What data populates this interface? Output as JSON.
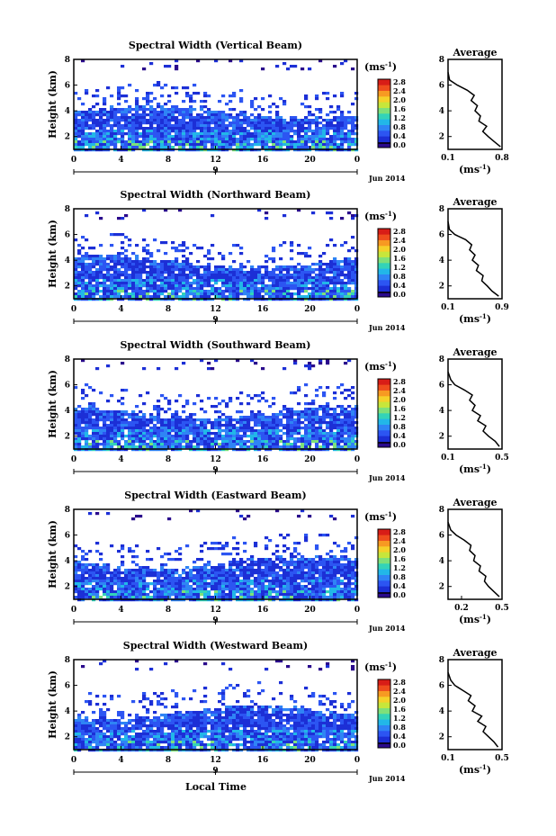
{
  "figure": {
    "xlabel_bottom": "Local Time",
    "colormap": [
      "#2a0a8c",
      "#1c2fd6",
      "#2c55f2",
      "#2f84f5",
      "#22b7e8",
      "#33d3b8",
      "#7ee07a",
      "#c7e63b",
      "#f5d12a",
      "#f79a22",
      "#ef4d1d",
      "#d81d17"
    ],
    "colorbar_marker": "#000000",
    "data_bg_color": "#ffffff"
  },
  "chart_data": [
    {
      "type": "heatmap",
      "title": "Spectral Width (Vertical Beam)",
      "ylabel": "Height (km)",
      "unit_label": "(ms-1)",
      "x_ticks": [
        "0",
        "4",
        "8",
        "12",
        "16",
        "20",
        "0"
      ],
      "x_range": [
        0,
        24
      ],
      "y_ticks": [
        "2",
        "4",
        "6",
        "8"
      ],
      "y_range": [
        1,
        8
      ],
      "date_tick": "9",
      "date_label": "Jun 2014",
      "colorbar_ticks": [
        "2.8",
        "2.4",
        "2.0",
        "1.6",
        "1.2",
        "0.8",
        "0.4",
        "0.0"
      ],
      "colorbar_range": [
        0.0,
        2.8
      ],
      "average_profile": {
        "title": "Average",
        "xlabel": "(ms-1)",
        "x_ticks": [
          "0.1",
          "0.8"
        ],
        "x_range": [
          0.1,
          0.8
        ],
        "y_ticks": [
          "2",
          "4",
          "6",
          "8"
        ],
        "y_range": [
          1,
          8
        ],
        "height_km": [
          1.2,
          1.6,
          2.0,
          2.4,
          2.8,
          3.2,
          3.6,
          4.0,
          4.4,
          4.8,
          5.2,
          5.6,
          6.0,
          6.4,
          7.0
        ],
        "width_ms": [
          0.78,
          0.7,
          0.62,
          0.55,
          0.6,
          0.5,
          0.52,
          0.45,
          0.48,
          0.4,
          0.44,
          0.35,
          0.22,
          0.12,
          0.1
        ]
      }
    },
    {
      "type": "heatmap",
      "title": "Spectral Width (Northward Beam)",
      "ylabel": "Height (km)",
      "unit_label": "(ms-1)",
      "x_ticks": [
        "0",
        "4",
        "8",
        "12",
        "16",
        "20",
        "0"
      ],
      "x_range": [
        0,
        24
      ],
      "y_ticks": [
        "2",
        "4",
        "6",
        "8"
      ],
      "y_range": [
        1,
        8
      ],
      "date_tick": "9",
      "date_label": "Jun 2014",
      "colorbar_ticks": [
        "2.8",
        "2.4",
        "2.0",
        "1.6",
        "1.2",
        "0.8",
        "0.4",
        "0.0"
      ],
      "colorbar_range": [
        0.0,
        2.8
      ],
      "average_profile": {
        "title": "Average",
        "xlabel": "(ms-1)",
        "x_ticks": [
          "0.1",
          "0.9"
        ],
        "x_range": [
          0.1,
          0.9
        ],
        "y_ticks": [
          "2",
          "4",
          "6",
          "8"
        ],
        "y_range": [
          1,
          8
        ],
        "height_km": [
          1.2,
          1.6,
          2.0,
          2.4,
          2.8,
          3.2,
          3.6,
          4.0,
          4.4,
          4.8,
          5.2,
          5.6,
          6.0,
          6.4,
          7.0
        ],
        "width_ms": [
          0.85,
          0.75,
          0.68,
          0.6,
          0.62,
          0.52,
          0.55,
          0.46,
          0.5,
          0.42,
          0.45,
          0.36,
          0.2,
          0.12,
          0.1
        ]
      }
    },
    {
      "type": "heatmap",
      "title": "Spectral Width (Southward Beam)",
      "ylabel": "Height (km)",
      "unit_label": "(ms-1)",
      "x_ticks": [
        "0",
        "4",
        "8",
        "12",
        "16",
        "20",
        "0"
      ],
      "x_range": [
        0,
        24
      ],
      "y_ticks": [
        "2",
        "4",
        "6",
        "8"
      ],
      "y_range": [
        1,
        8
      ],
      "date_tick": "9",
      "date_label": "Jun 2014",
      "colorbar_ticks": [
        "2.8",
        "2.4",
        "2.0",
        "1.6",
        "1.2",
        "0.8",
        "0.4",
        "0.0"
      ],
      "colorbar_range": [
        0.0,
        2.8
      ],
      "average_profile": {
        "title": "Average",
        "xlabel": "(ms-1)",
        "x_ticks": [
          "0.1",
          "0.5"
        ],
        "x_range": [
          0.1,
          0.5
        ],
        "y_ticks": [
          "2",
          "4",
          "6",
          "8"
        ],
        "y_range": [
          1,
          8
        ],
        "height_km": [
          1.2,
          1.6,
          2.0,
          2.4,
          2.8,
          3.2,
          3.6,
          4.0,
          4.4,
          4.8,
          5.2,
          5.6,
          6.0,
          6.4,
          7.0
        ],
        "width_ms": [
          0.48,
          0.45,
          0.4,
          0.36,
          0.38,
          0.32,
          0.34,
          0.28,
          0.3,
          0.26,
          0.28,
          0.22,
          0.15,
          0.12,
          0.1
        ]
      }
    },
    {
      "type": "heatmap",
      "title": "Spectral Width (Eastward Beam)",
      "ylabel": "Height (km)",
      "unit_label": "(ms-1)",
      "x_ticks": [
        "0",
        "4",
        "8",
        "12",
        "16",
        "20",
        "0"
      ],
      "x_range": [
        0,
        24
      ],
      "y_ticks": [
        "2",
        "4",
        "6",
        "8"
      ],
      "y_range": [
        1,
        8
      ],
      "date_tick": "9",
      "date_label": "Jun 2014",
      "colorbar_ticks": [
        "2.8",
        "2.4",
        "2.0",
        "1.6",
        "1.2",
        "0.8",
        "0.4",
        "0.0"
      ],
      "colorbar_range": [
        0.0,
        2.8
      ],
      "average_profile": {
        "title": "Average",
        "xlabel": "(ms-1)",
        "x_ticks": [
          "0.2",
          "0.5"
        ],
        "x_range": [
          0.1,
          0.5
        ],
        "y_ticks": [
          "2",
          "4",
          "6",
          "8"
        ],
        "y_range": [
          1,
          8
        ],
        "height_km": [
          1.2,
          1.6,
          2.0,
          2.4,
          2.8,
          3.2,
          3.6,
          4.0,
          4.4,
          4.8,
          5.2,
          5.6,
          6.0,
          6.4,
          7.0
        ],
        "width_ms": [
          0.48,
          0.44,
          0.4,
          0.37,
          0.38,
          0.33,
          0.34,
          0.29,
          0.3,
          0.26,
          0.27,
          0.22,
          0.16,
          0.12,
          0.1
        ]
      }
    },
    {
      "type": "heatmap",
      "title": "Spectral Width (Westward Beam)",
      "ylabel": "Height (km)",
      "unit_label": "(ms-1)",
      "x_ticks": [
        "0",
        "4",
        "8",
        "12",
        "16",
        "20",
        "0"
      ],
      "x_range": [
        0,
        24
      ],
      "y_ticks": [
        "2",
        "4",
        "6",
        "8"
      ],
      "y_range": [
        1,
        8
      ],
      "date_tick": "9",
      "date_label": "Jun 2014",
      "colorbar_ticks": [
        "2.8",
        "2.4",
        "2.0",
        "1.6",
        "1.2",
        "0.8",
        "0.4",
        "0.0"
      ],
      "colorbar_range": [
        0.0,
        2.8
      ],
      "average_profile": {
        "title": "Average",
        "xlabel": "(ms-1)",
        "x_ticks": [
          "0.1",
          "0.5"
        ],
        "x_range": [
          0.1,
          0.5
        ],
        "y_ticks": [
          "2",
          "4",
          "6",
          "8"
        ],
        "y_range": [
          1,
          8
        ],
        "height_km": [
          1.2,
          1.6,
          2.0,
          2.4,
          2.8,
          3.2,
          3.6,
          4.0,
          4.4,
          4.8,
          5.2,
          5.6,
          6.0,
          6.4,
          7.0
        ],
        "width_ms": [
          0.47,
          0.44,
          0.4,
          0.36,
          0.38,
          0.32,
          0.35,
          0.28,
          0.3,
          0.25,
          0.27,
          0.21,
          0.15,
          0.12,
          0.1
        ]
      }
    }
  ]
}
